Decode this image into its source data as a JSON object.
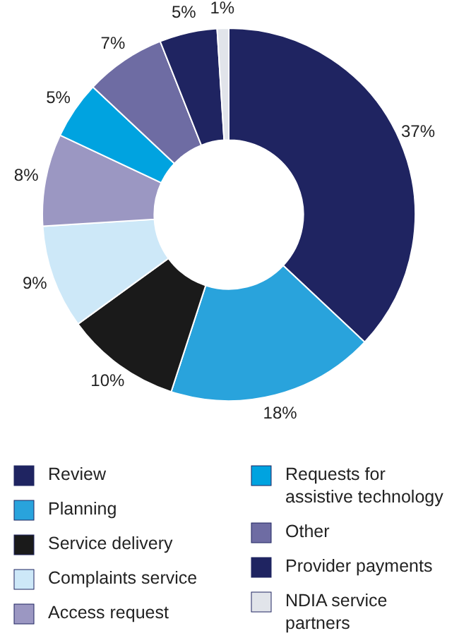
{
  "chart_data": {
    "type": "donut",
    "categories": [
      "Review",
      "Planning",
      "Service delivery",
      "Complaints service",
      "Access request",
      "Requests for assistive technology",
      "Other",
      "Provider payments",
      "NDIA service partners"
    ],
    "values": [
      37,
      18,
      10,
      9,
      8,
      5,
      7,
      5,
      1
    ],
    "value_labels": [
      "37%",
      "18%",
      "10%",
      "9%",
      "8%",
      "5%",
      "7%",
      "5%",
      "1%"
    ],
    "colors": [
      "#1f2461",
      "#29a3dc",
      "#1a1a1a",
      "#cde8f8",
      "#9b97c2",
      "#00a3e0",
      "#6e6ca3",
      "#1f2461",
      "#e1e4ea"
    ],
    "legend": "bottom"
  }
}
